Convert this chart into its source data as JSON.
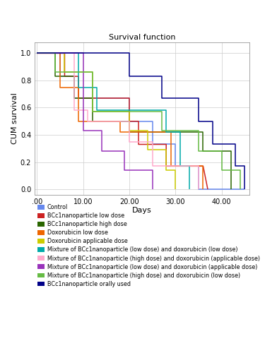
{
  "title": "Survival function",
  "xlabel": "Days",
  "ylabel": "CUM survival",
  "xlim": [
    -0.5,
    46
  ],
  "ylim": [
    -0.04,
    1.08
  ],
  "xticks": [
    0,
    10,
    20,
    30,
    40
  ],
  "xtick_labels": [
    ".00",
    "10.00",
    "20.00",
    "30.00",
    "40.00"
  ],
  "yticks": [
    0.0,
    0.2,
    0.4,
    0.6,
    0.8,
    1.0
  ],
  "figsize": [
    3.92,
    5.0
  ],
  "dpi": 100,
  "groups": [
    {
      "label": "Control",
      "color": "#6688EE",
      "times": [
        0,
        5,
        5,
        8,
        8,
        20,
        20,
        25,
        25,
        30,
        30,
        35,
        35,
        40,
        40,
        45
      ],
      "surv": [
        1.0,
        1.0,
        0.83,
        0.83,
        0.67,
        0.67,
        0.5,
        0.5,
        0.33,
        0.33,
        0.17,
        0.17,
        0.0,
        0.0,
        0.0,
        0.0
      ]
    },
    {
      "label": "BCc1nanoparticle low dose",
      "color": "#CC2222",
      "times": [
        0,
        6,
        6,
        9,
        9,
        20,
        20,
        22,
        22,
        28,
        28,
        33,
        33,
        36,
        36,
        37
      ],
      "surv": [
        1.0,
        1.0,
        0.83,
        0.83,
        0.67,
        0.67,
        0.5,
        0.5,
        0.33,
        0.33,
        0.17,
        0.17,
        0.17,
        0.17,
        0.17,
        0.0
      ]
    },
    {
      "label": "BCc1nanoparticle high dose",
      "color": "#2A6600",
      "times": [
        0,
        4,
        4,
        8,
        8,
        12,
        12,
        20,
        20,
        28,
        28,
        36,
        36,
        42,
        42
      ],
      "surv": [
        1.0,
        1.0,
        0.83,
        0.83,
        0.67,
        0.67,
        0.5,
        0.5,
        0.42,
        0.42,
        0.42,
        0.42,
        0.28,
        0.28,
        0.0
      ]
    },
    {
      "label": "Doxorubicin low dose",
      "color": "#EE6600",
      "times": [
        0,
        5,
        5,
        9,
        9,
        18,
        18,
        22,
        22,
        29,
        29,
        36,
        36
      ],
      "surv": [
        1.0,
        1.0,
        0.75,
        0.75,
        0.5,
        0.5,
        0.42,
        0.42,
        0.42,
        0.42,
        0.17,
        0.17,
        0.0
      ]
    },
    {
      "label": "Doxorubicin applicable dose",
      "color": "#CCCC00",
      "times": [
        0,
        6,
        6,
        12,
        12,
        20,
        20,
        24,
        24,
        28,
        28,
        30,
        30
      ],
      "surv": [
        1.0,
        1.0,
        0.86,
        0.86,
        0.57,
        0.57,
        0.43,
        0.43,
        0.29,
        0.29,
        0.14,
        0.14,
        0.0
      ]
    },
    {
      "label": "Mixture of BCc1nanoparticle (low dose) and doxorubicin (low dose)",
      "color": "#00AAAA",
      "times": [
        0,
        9,
        9,
        13,
        13,
        20,
        20,
        28,
        28,
        31,
        31,
        33,
        33
      ],
      "surv": [
        1.0,
        1.0,
        0.75,
        0.75,
        0.58,
        0.58,
        0.58,
        0.58,
        0.42,
        0.42,
        0.17,
        0.17,
        0.0
      ]
    },
    {
      "label": "Mixture of BCc1nanoparticle (high dose) and doxorubicin (applicable dose)",
      "color": "#FFAACC",
      "times": [
        0,
        8,
        8,
        11,
        11,
        20,
        20,
        25,
        25,
        32,
        32,
        35,
        35
      ],
      "surv": [
        1.0,
        1.0,
        0.58,
        0.58,
        0.5,
        0.5,
        0.35,
        0.35,
        0.17,
        0.17,
        0.17,
        0.17,
        0.0
      ]
    },
    {
      "label": "Mixture of BCc1nanoparticle (low dose) and doxorubicin (applicable dose)",
      "color": "#9933BB",
      "times": [
        0,
        10,
        10,
        14,
        14,
        19,
        19,
        22,
        22,
        25,
        25
      ],
      "surv": [
        1.0,
        1.0,
        0.43,
        0.43,
        0.28,
        0.28,
        0.14,
        0.14,
        0.14,
        0.14,
        0.0
      ]
    },
    {
      "label": "Mixture of BCc1nanoparticle (high dose) and doxorubicin (low dose)",
      "color": "#66BB44",
      "times": [
        0,
        4,
        4,
        12,
        12,
        20,
        20,
        27,
        27,
        35,
        35,
        40,
        40,
        44,
        44
      ],
      "surv": [
        1.0,
        1.0,
        0.86,
        0.86,
        0.57,
        0.57,
        0.57,
        0.57,
        0.43,
        0.43,
        0.28,
        0.28,
        0.14,
        0.14,
        0.0
      ]
    },
    {
      "label": "BCc1nanoparticle orally used",
      "color": "#000088",
      "times": [
        0,
        13,
        13,
        20,
        20,
        27,
        27,
        35,
        35,
        38,
        38,
        43,
        43,
        45,
        45
      ],
      "surv": [
        1.0,
        1.0,
        1.0,
        1.0,
        0.83,
        0.83,
        0.67,
        0.67,
        0.5,
        0.5,
        0.33,
        0.33,
        0.17,
        0.17,
        0.0
      ]
    }
  ],
  "background_color": "#ffffff"
}
